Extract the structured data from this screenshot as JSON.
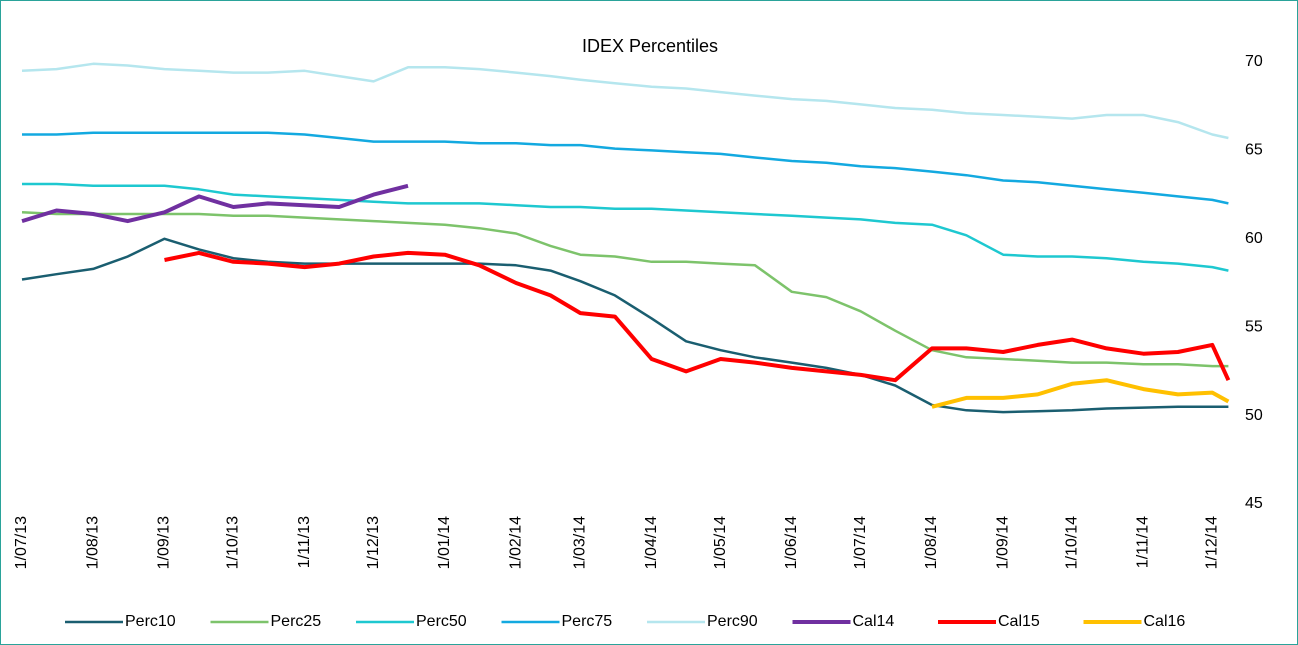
{
  "chart_data": {
    "type": "line",
    "title": "IDEX Percentiles",
    "x": [
      "2013-07-01",
      "2013-07-16",
      "2013-08-01",
      "2013-08-16",
      "2013-09-01",
      "2013-09-16",
      "2013-10-01",
      "2013-10-16",
      "2013-11-01",
      "2013-11-16",
      "2013-12-01",
      "2013-12-16",
      "2014-01-01",
      "2014-01-16",
      "2014-02-01",
      "2014-02-16",
      "2014-03-01",
      "2014-03-16",
      "2014-04-01",
      "2014-04-16",
      "2014-05-01",
      "2014-05-16",
      "2014-06-01",
      "2014-06-16",
      "2014-07-01",
      "2014-07-16",
      "2014-08-01",
      "2014-08-16",
      "2014-09-01",
      "2014-09-16",
      "2014-10-01",
      "2014-10-16",
      "2014-11-01",
      "2014-11-16",
      "2014-12-01",
      "2014-12-08"
    ],
    "series": [
      {
        "name": "Perc10",
        "color": "#1a5e70",
        "width": 2.5,
        "values": [
          57.7,
          58.0,
          58.3,
          59.0,
          60.0,
          59.4,
          58.9,
          58.7,
          58.6,
          58.6,
          58.6,
          58.6,
          58.6,
          58.6,
          58.5,
          58.2,
          57.6,
          56.8,
          55.5,
          54.2,
          53.7,
          53.3,
          53.0,
          52.7,
          52.3,
          51.7,
          50.6,
          50.3,
          50.2,
          50.25,
          50.3,
          50.4,
          50.45,
          50.5,
          50.5,
          50.5
        ]
      },
      {
        "name": "Perc25",
        "color": "#7dc36b",
        "width": 2.5,
        "values": [
          61.5,
          61.4,
          61.4,
          61.4,
          61.4,
          61.4,
          61.3,
          61.3,
          61.2,
          61.1,
          61.0,
          60.9,
          60.8,
          60.6,
          60.3,
          59.6,
          59.1,
          59.0,
          58.7,
          58.7,
          58.6,
          58.5,
          57.0,
          56.7,
          55.9,
          54.8,
          53.7,
          53.3,
          53.2,
          53.1,
          53.0,
          53.0,
          52.9,
          52.9,
          52.8,
          52.8
        ]
      },
      {
        "name": "Perc50",
        "color": "#1ec8d0",
        "width": 2.5,
        "values": [
          63.1,
          63.1,
          63.0,
          63.0,
          63.0,
          62.8,
          62.5,
          62.4,
          62.3,
          62.2,
          62.1,
          62.0,
          62.0,
          62.0,
          61.9,
          61.8,
          61.8,
          61.7,
          61.7,
          61.6,
          61.5,
          61.4,
          61.3,
          61.2,
          61.1,
          60.9,
          60.8,
          60.2,
          59.1,
          59.0,
          59.0,
          58.9,
          58.7,
          58.6,
          58.4,
          58.2
        ]
      },
      {
        "name": "Perc75",
        "color": "#13a9e0",
        "width": 2.5,
        "values": [
          65.9,
          65.9,
          66.0,
          66.0,
          66.0,
          66.0,
          66.0,
          66.0,
          65.9,
          65.7,
          65.5,
          65.5,
          65.5,
          65.4,
          65.4,
          65.3,
          65.3,
          65.1,
          65.0,
          64.9,
          64.8,
          64.6,
          64.4,
          64.3,
          64.1,
          64.0,
          63.8,
          63.6,
          63.3,
          63.2,
          63.0,
          62.8,
          62.6,
          62.4,
          62.2,
          62.0
        ]
      },
      {
        "name": "Perc90",
        "color": "#b5e6ee",
        "width": 2.5,
        "values": [
          69.5,
          69.6,
          69.9,
          69.8,
          69.6,
          69.5,
          69.4,
          69.4,
          69.5,
          69.2,
          68.9,
          69.7,
          69.7,
          69.6,
          69.4,
          69.2,
          69.0,
          68.8,
          68.6,
          68.5,
          68.3,
          68.1,
          67.9,
          67.8,
          67.6,
          67.4,
          67.3,
          67.1,
          67.0,
          66.9,
          66.8,
          67.0,
          67.0,
          66.6,
          65.9,
          65.7
        ]
      },
      {
        "name": "Cal14",
        "color": "#7030a0",
        "width": 4,
        "values": [
          61.0,
          61.6,
          61.4,
          61.0,
          61.5,
          62.4,
          61.8,
          62.0,
          61.9,
          61.8,
          62.5,
          63.0,
          null,
          null,
          null,
          null,
          null,
          null,
          null,
          null,
          null,
          null,
          null,
          null,
          null,
          null,
          null,
          null,
          null,
          null,
          null,
          null,
          null,
          null,
          null,
          null
        ]
      },
      {
        "name": "Cal15",
        "color": "#ff0000",
        "width": 4,
        "values": [
          null,
          null,
          null,
          null,
          58.8,
          59.2,
          58.7,
          58.6,
          58.4,
          58.6,
          59.0,
          59.2,
          59.1,
          58.5,
          57.5,
          56.8,
          55.8,
          55.6,
          53.2,
          52.5,
          53.2,
          53.0,
          52.7,
          52.5,
          52.3,
          52.0,
          53.8,
          53.8,
          53.6,
          54.0,
          54.3,
          53.8,
          53.5,
          53.6,
          54.0,
          52.0
        ]
      },
      {
        "name": "Cal16",
        "color": "#ffc000",
        "width": 4,
        "values": [
          null,
          null,
          null,
          null,
          null,
          null,
          null,
          null,
          null,
          null,
          null,
          null,
          null,
          null,
          null,
          null,
          null,
          null,
          null,
          null,
          null,
          null,
          null,
          null,
          null,
          null,
          50.5,
          51.0,
          51.0,
          51.2,
          51.8,
          52.0,
          51.5,
          51.2,
          51.3,
          50.8
        ]
      }
    ],
    "xlim": [
      "2013-07-01",
      "2014-12-10"
    ],
    "xticks": [
      {
        "value": "2013-07-01",
        "label": "1/07/13"
      },
      {
        "value": "2013-08-01",
        "label": "1/08/13"
      },
      {
        "value": "2013-09-01",
        "label": "1/09/13"
      },
      {
        "value": "2013-10-01",
        "label": "1/10/13"
      },
      {
        "value": "2013-11-01",
        "label": "1/11/13"
      },
      {
        "value": "2013-12-01",
        "label": "1/12/13"
      },
      {
        "value": "2014-01-01",
        "label": "1/01/14"
      },
      {
        "value": "2014-02-01",
        "label": "1/02/14"
      },
      {
        "value": "2014-03-01",
        "label": "1/03/14"
      },
      {
        "value": "2014-04-01",
        "label": "1/04/14"
      },
      {
        "value": "2014-05-01",
        "label": "1/05/14"
      },
      {
        "value": "2014-06-01",
        "label": "1/06/14"
      },
      {
        "value": "2014-07-01",
        "label": "1/07/14"
      },
      {
        "value": "2014-08-01",
        "label": "1/08/14"
      },
      {
        "value": "2014-09-01",
        "label": "1/09/14"
      },
      {
        "value": "2014-10-01",
        "label": "1/10/14"
      },
      {
        "value": "2014-11-01",
        "label": "1/11/14"
      },
      {
        "value": "2014-12-01",
        "label": "1/12/14"
      }
    ],
    "ylim": [
      45,
      70
    ],
    "yticks": [
      45,
      50,
      55,
      60,
      65,
      70
    ],
    "y_axis_side": "right",
    "grid": false,
    "legend": "bottom"
  }
}
